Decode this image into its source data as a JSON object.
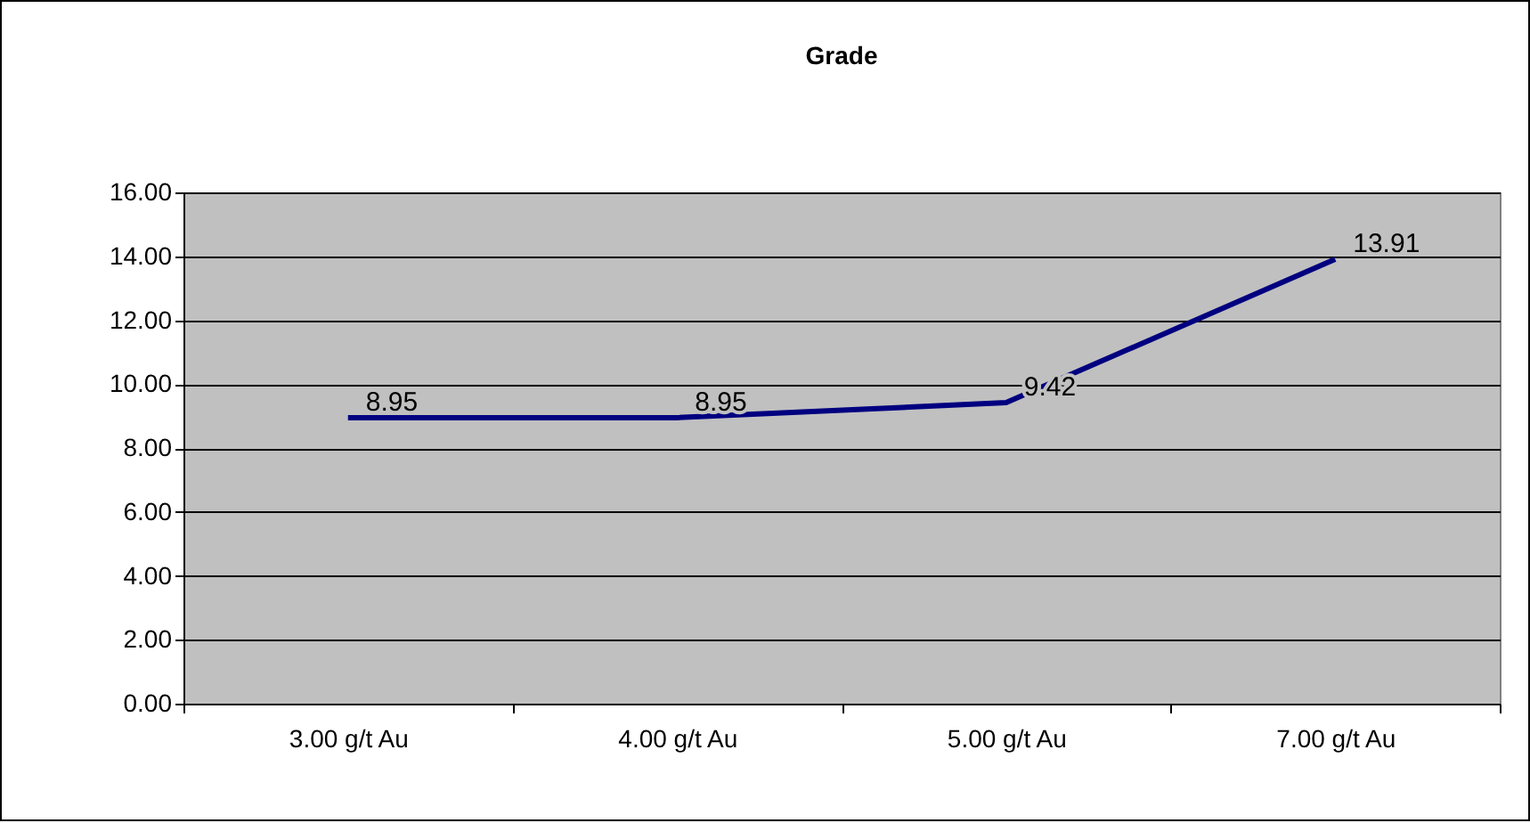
{
  "chart_data": {
    "type": "line",
    "title": "Grade",
    "categories": [
      "3.00 g/t Au",
      "4.00 g/t Au",
      "5.00 g/t Au",
      "7.00 g/t Au"
    ],
    "series": [
      {
        "color": "#000080",
        "values": [
          8.95,
          8.95,
          9.42,
          13.91
        ]
      }
    ],
    "ylim": [
      0,
      16
    ],
    "yticks": [
      {
        "value": 0,
        "label": "0.00"
      },
      {
        "value": 2,
        "label": "2.00"
      },
      {
        "value": 4,
        "label": "4.00"
      },
      {
        "value": 6,
        "label": "6.00"
      },
      {
        "value": 8,
        "label": "8.00"
      },
      {
        "value": 10,
        "label": "10.00"
      },
      {
        "value": 12,
        "label": "12.00"
      },
      {
        "value": 14,
        "label": "14.00"
      },
      {
        "value": 16,
        "label": "16.00"
      }
    ],
    "grid": "y",
    "legend": false,
    "marker": "none",
    "line_style": "solid",
    "data_labels": true
  }
}
